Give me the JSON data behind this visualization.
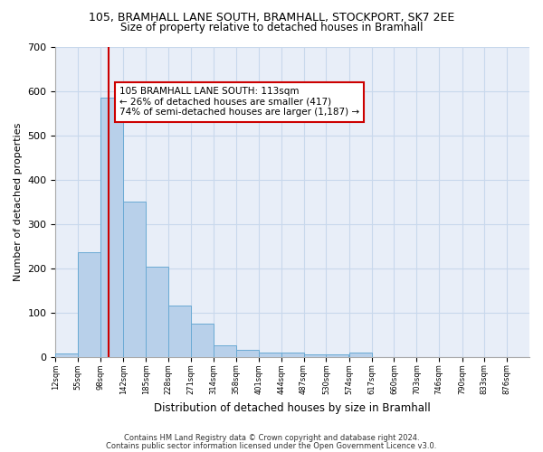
{
  "title1": "105, BRAMHALL LANE SOUTH, BRAMHALL, STOCKPORT, SK7 2EE",
  "title2": "Size of property relative to detached houses in Bramhall",
  "xlabel": "Distribution of detached houses by size in Bramhall",
  "ylabel": "Number of detached properties",
  "footnote1": "Contains HM Land Registry data © Crown copyright and database right 2024.",
  "footnote2": "Contains public sector information licensed under the Open Government Licence v3.0.",
  "bar_left_edges": [
    12,
    55,
    98,
    142,
    185,
    228,
    271,
    314,
    358,
    401,
    444,
    487,
    530,
    574,
    617,
    660,
    703,
    746,
    790,
    833
  ],
  "bar_heights": [
    8,
    235,
    585,
    350,
    203,
    115,
    75,
    26,
    15,
    10,
    10,
    5,
    5,
    10,
    0,
    0,
    0,
    0,
    0,
    0
  ],
  "bin_width": 43,
  "bar_color": "#b8d0ea",
  "bar_edge_color": "#6aaad4",
  "grid_color": "#c8d8ec",
  "bg_color": "#e8eef8",
  "property_x": 113,
  "vline_color": "#cc0000",
  "annotation_text": "105 BRAMHALL LANE SOUTH: 113sqm\n← 26% of detached houses are smaller (417)\n74% of semi-detached houses are larger (1,187) →",
  "annotation_box_color": "#ffffff",
  "annotation_box_edge": "#cc0000",
  "tick_labels": [
    "12sqm",
    "55sqm",
    "98sqm",
    "142sqm",
    "185sqm",
    "228sqm",
    "271sqm",
    "314sqm",
    "358sqm",
    "401sqm",
    "444sqm",
    "487sqm",
    "530sqm",
    "574sqm",
    "617sqm",
    "660sqm",
    "703sqm",
    "746sqm",
    "790sqm",
    "833sqm",
    "876sqm"
  ],
  "tick_positions": [
    12,
    55,
    98,
    142,
    185,
    228,
    271,
    314,
    358,
    401,
    444,
    487,
    530,
    574,
    617,
    660,
    703,
    746,
    790,
    833,
    876
  ],
  "xlim": [
    12,
    919
  ],
  "ylim": [
    0,
    700
  ],
  "yticks": [
    0,
    100,
    200,
    300,
    400,
    500,
    600,
    700
  ]
}
